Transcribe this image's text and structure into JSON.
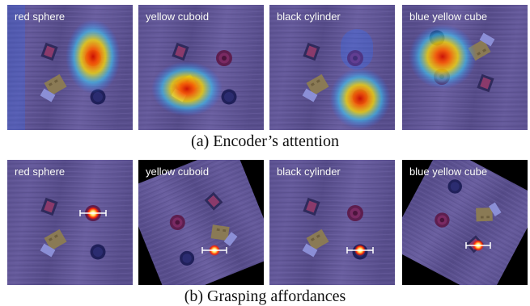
{
  "figure": {
    "row_a": {
      "caption": "(a) Encoder’s attention",
      "panels": [
        {
          "label": "red sphere"
        },
        {
          "label": "yellow cuboid"
        },
        {
          "label": "black cylinder"
        },
        {
          "label": "blue yellow cube"
        }
      ]
    },
    "row_b": {
      "caption": "(b) Grasping affordances",
      "panels": [
        {
          "label": "red sphere"
        },
        {
          "label": "yellow cuboid"
        },
        {
          "label": "black cylinder"
        },
        {
          "label": "blue yellow cube"
        }
      ]
    }
  },
  "colors": {
    "table": "#5a4f8f",
    "attention_hot": "#ff2a00",
    "attention_warm": "#ffe600",
    "attention_cool": "#38d0ff"
  }
}
